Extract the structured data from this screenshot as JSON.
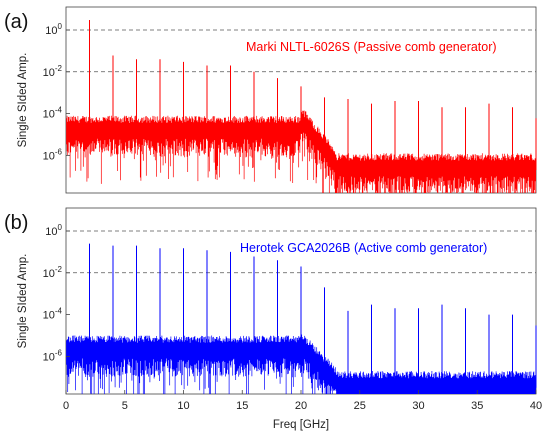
{
  "chart_data": [
    {
      "type": "line",
      "panel_label": "(a)",
      "annotation": "Marki NLTL-6026S (Passive comb generator)",
      "color": "#ff0000",
      "ylabel": "Single SIded Amp.",
      "xlabel": "",
      "xlim": [
        0,
        40
      ],
      "ylim_log10": [
        -7.8,
        1.1
      ],
      "y_scale": "log",
      "y_ticks": [
        {
          "exp": 0,
          "label": "10",
          "sup": "0"
        },
        {
          "exp": -2,
          "label": "10",
          "sup": "-2"
        },
        {
          "exp": -4,
          "label": "10",
          "sup": "-4"
        },
        {
          "exp": -6,
          "label": "10",
          "sup": "-6"
        }
      ],
      "grid": "dashed horizontal at 10^0 and 10^-2",
      "noise_floor_segments": [
        {
          "x": [
            0,
            20
          ],
          "floor_log10": -4.6
        },
        {
          "x": [
            20,
            23
          ],
          "floor_log10": [
            -4.1,
            -6.2
          ]
        },
        {
          "x": [
            23,
            40
          ],
          "floor_log10": -6.4
        }
      ],
      "comb_lines": {
        "x": [
          2,
          4,
          6,
          8,
          10,
          12,
          14,
          16,
          18,
          20,
          22,
          24,
          26,
          28,
          30,
          32,
          34,
          36,
          38,
          40
        ],
        "y": [
          3.0,
          0.06,
          0.04,
          0.04,
          0.03,
          0.02,
          0.02,
          0.01,
          0.005,
          0.002,
          0.0006,
          0.0005,
          0.0003,
          0.0004,
          0.0004,
          0.0002,
          0.0002,
          0.0003,
          0.0002,
          6e-05
        ]
      }
    },
    {
      "type": "line",
      "panel_label": "(b)",
      "annotation": "Herotek GCA2026B (Active comb generator)",
      "color": "#0000ff",
      "ylabel": "Single SIded Amp.",
      "xlabel": "Freq [GHz]",
      "xlim": [
        0,
        40
      ],
      "ylim_log10": [
        -7.8,
        1.1
      ],
      "y_scale": "log",
      "y_ticks": [
        {
          "exp": 0,
          "label": "10",
          "sup": "0"
        },
        {
          "exp": -2,
          "label": "10",
          "sup": "-2"
        },
        {
          "exp": -4,
          "label": "10",
          "sup": "-4"
        },
        {
          "exp": -6,
          "label": "10",
          "sup": "-6"
        }
      ],
      "x_ticks": [
        0,
        5,
        10,
        15,
        20,
        25,
        30,
        35,
        40
      ],
      "grid": "dashed horizontal at 10^0 and 10^-2",
      "noise_floor_segments": [
        {
          "x": [
            0,
            20
          ],
          "floor_log10": -5.5
        },
        {
          "x": [
            20,
            23
          ],
          "floor_log10": [
            -5.3,
            -7.0
          ]
        },
        {
          "x": [
            23,
            40
          ],
          "floor_log10": -7.2
        }
      ],
      "comb_lines": {
        "x": [
          2,
          4,
          6,
          8,
          10,
          12,
          14,
          16,
          18,
          20,
          22,
          24,
          26,
          28,
          30,
          32,
          34,
          36,
          38,
          40
        ],
        "y": [
          0.25,
          0.2,
          0.2,
          0.15,
          0.15,
          0.12,
          0.1,
          0.06,
          0.04,
          0.02,
          0.002,
          0.00015,
          0.0003,
          0.0002,
          0.0002,
          0.0003,
          0.0002,
          0.0001,
          0.0001,
          3e-05
        ]
      }
    }
  ]
}
